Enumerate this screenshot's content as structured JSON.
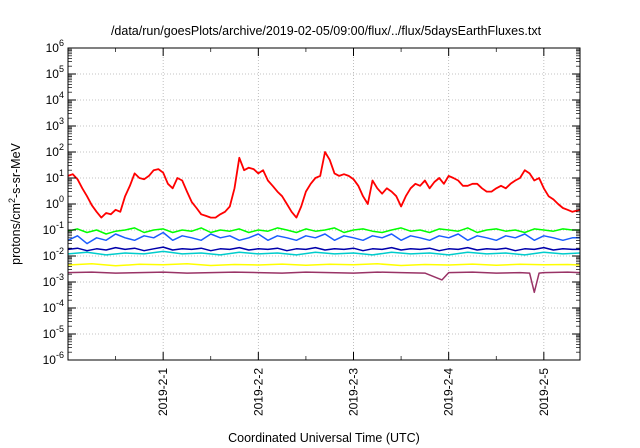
{
  "chart_data": {
    "type": "line",
    "title": "/data/run/goesPlots/archive/2019-02-05/09:00/flux/../flux/5daysEarthFluxes.txt",
    "xlabel": "Coordinated Universal Time (UTC)",
    "ylabel": "protons/cm2-s-sr-MeV",
    "ylabel_parts": {
      "before": "protons/cm",
      "sup": "2",
      "after": "-s-sr-MeV"
    },
    "yscale": "log",
    "ylim": [
      1e-06,
      1000000.0
    ],
    "xlim": [
      0,
      5.38
    ],
    "grid": true,
    "legend": "none",
    "y_ticks": [
      {
        "base": "10",
        "exp": "-6",
        "value": 1e-06
      },
      {
        "base": "10",
        "exp": "-5",
        "value": 1e-05
      },
      {
        "base": "10",
        "exp": "-4",
        "value": 0.0001
      },
      {
        "base": "10",
        "exp": "-3",
        "value": 0.001
      },
      {
        "base": "10",
        "exp": "-2",
        "value": 0.01
      },
      {
        "base": "10",
        "exp": "-1",
        "value": 0.1
      },
      {
        "base": "10",
        "exp": "0",
        "value": 1
      },
      {
        "base": "10",
        "exp": "1",
        "value": 10
      },
      {
        "base": "10",
        "exp": "2",
        "value": 100
      },
      {
        "base": "10",
        "exp": "3",
        "value": 1000
      },
      {
        "base": "10",
        "exp": "4",
        "value": 10000
      },
      {
        "base": "10",
        "exp": "5",
        "value": 100000
      },
      {
        "base": "10",
        "exp": "6",
        "value": 1000000
      }
    ],
    "x_ticks": [
      {
        "label": "2019-2-1",
        "value": 1
      },
      {
        "label": "2019-2-2",
        "value": 2
      },
      {
        "label": "2019-2-3",
        "value": 3
      },
      {
        "label": "2019-2-4",
        "value": 4
      },
      {
        "label": "2019-2-5",
        "value": 5
      }
    ],
    "series": [
      {
        "color": "#ff0000",
        "x": [
          0,
          0.05,
          0.1,
          0.15,
          0.2,
          0.25,
          0.3,
          0.35,
          0.4,
          0.45,
          0.5,
          0.55,
          0.6,
          0.65,
          0.7,
          0.75,
          0.8,
          0.85,
          0.9,
          0.95,
          1.0,
          1.05,
          1.1,
          1.15,
          1.2,
          1.25,
          1.3,
          1.35,
          1.4,
          1.45,
          1.5,
          1.55,
          1.6,
          1.65,
          1.7,
          1.75,
          1.8,
          1.85,
          1.9,
          1.95,
          2.0,
          2.05,
          2.1,
          2.15,
          2.2,
          2.25,
          2.3,
          2.35,
          2.4,
          2.45,
          2.5,
          2.55,
          2.6,
          2.65,
          2.7,
          2.75,
          2.8,
          2.85,
          2.9,
          2.95,
          3.0,
          3.05,
          3.1,
          3.15,
          3.2,
          3.25,
          3.3,
          3.35,
          3.4,
          3.45,
          3.5,
          3.55,
          3.6,
          3.65,
          3.7,
          3.75,
          3.8,
          3.85,
          3.9,
          3.95,
          4.0,
          4.05,
          4.1,
          4.15,
          4.2,
          4.25,
          4.3,
          4.35,
          4.4,
          4.45,
          4.5,
          4.55,
          4.6,
          4.65,
          4.7,
          4.75,
          4.8,
          4.85,
          4.9,
          4.95,
          5.0,
          5.05,
          5.1,
          5.15,
          5.2,
          5.25,
          5.3,
          5.38
        ],
        "y": [
          12,
          14,
          9,
          4,
          2,
          0.9,
          0.5,
          0.3,
          0.45,
          0.4,
          0.6,
          0.5,
          2,
          5,
          15,
          10,
          9,
          12,
          20,
          22,
          16,
          6,
          4,
          10,
          8,
          3,
          1.2,
          0.7,
          0.4,
          0.35,
          0.3,
          0.3,
          0.4,
          0.5,
          0.8,
          4,
          60,
          20,
          25,
          22,
          15,
          20,
          8,
          5,
          3,
          2,
          1,
          0.5,
          0.3,
          0.8,
          3,
          6,
          10,
          12,
          100,
          50,
          15,
          12,
          14,
          12,
          9,
          5,
          2,
          1,
          8,
          4,
          2.5,
          4,
          3,
          2,
          0.8,
          2,
          4,
          6,
          5,
          8,
          4,
          7,
          10,
          6,
          12,
          10,
          8,
          5,
          5,
          6,
          6,
          4,
          3,
          3,
          4,
          5,
          4,
          6,
          8,
          10,
          20,
          15,
          8,
          10,
          4,
          2,
          1.5,
          1,
          0.7,
          0.6,
          0.5,
          0.6
        ]
      },
      {
        "color": "#00ff00",
        "x": [
          0,
          0.1,
          0.2,
          0.3,
          0.4,
          0.5,
          0.6,
          0.7,
          0.8,
          0.9,
          1.0,
          1.1,
          1.2,
          1.3,
          1.4,
          1.5,
          1.6,
          1.7,
          1.8,
          1.9,
          2.0,
          2.1,
          2.2,
          2.3,
          2.4,
          2.5,
          2.6,
          2.7,
          2.8,
          2.9,
          3.0,
          3.1,
          3.2,
          3.3,
          3.4,
          3.5,
          3.6,
          3.7,
          3.8,
          3.9,
          4.0,
          4.1,
          4.2,
          4.3,
          4.4,
          4.5,
          4.6,
          4.7,
          4.8,
          4.9,
          5.0,
          5.1,
          5.2,
          5.3,
          5.38
        ],
        "y": [
          0.09,
          0.11,
          0.08,
          0.1,
          0.07,
          0.09,
          0.1,
          0.12,
          0.08,
          0.1,
          0.11,
          0.08,
          0.1,
          0.09,
          0.12,
          0.08,
          0.1,
          0.09,
          0.11,
          0.08,
          0.1,
          0.09,
          0.12,
          0.1,
          0.08,
          0.11,
          0.09,
          0.1,
          0.12,
          0.08,
          0.1,
          0.11,
          0.09,
          0.08,
          0.1,
          0.12,
          0.09,
          0.1,
          0.08,
          0.11,
          0.1,
          0.09,
          0.12,
          0.08,
          0.1,
          0.11,
          0.09,
          0.1,
          0.08,
          0.11,
          0.1,
          0.09,
          0.11,
          0.1,
          0.1
        ]
      },
      {
        "color": "#1a5cff",
        "x": [
          0,
          0.1,
          0.2,
          0.3,
          0.4,
          0.5,
          0.6,
          0.7,
          0.8,
          0.9,
          1.0,
          1.1,
          1.2,
          1.3,
          1.4,
          1.5,
          1.6,
          1.7,
          1.8,
          1.9,
          2.0,
          2.1,
          2.2,
          2.3,
          2.4,
          2.5,
          2.6,
          2.7,
          2.8,
          2.9,
          3.0,
          3.1,
          3.2,
          3.3,
          3.4,
          3.5,
          3.6,
          3.7,
          3.8,
          3.9,
          4.0,
          4.1,
          4.2,
          4.3,
          4.4,
          4.5,
          4.6,
          4.7,
          4.8,
          4.9,
          5.0,
          5.1,
          5.2,
          5.3,
          5.38
        ],
        "y": [
          0.04,
          0.06,
          0.03,
          0.05,
          0.04,
          0.07,
          0.05,
          0.04,
          0.06,
          0.05,
          0.08,
          0.04,
          0.06,
          0.05,
          0.04,
          0.07,
          0.05,
          0.06,
          0.04,
          0.05,
          0.07,
          0.04,
          0.06,
          0.05,
          0.04,
          0.06,
          0.05,
          0.07,
          0.04,
          0.06,
          0.05,
          0.04,
          0.06,
          0.05,
          0.07,
          0.04,
          0.06,
          0.05,
          0.04,
          0.06,
          0.05,
          0.07,
          0.04,
          0.06,
          0.05,
          0.04,
          0.06,
          0.05,
          0.07,
          0.04,
          0.06,
          0.05,
          0.04,
          0.05,
          0.05
        ]
      },
      {
        "color": "#00cccc",
        "x": [
          0,
          0.2,
          0.4,
          0.6,
          0.8,
          1.0,
          1.2,
          1.4,
          1.6,
          1.8,
          2.0,
          2.2,
          2.4,
          2.6,
          2.8,
          3.0,
          3.2,
          3.4,
          3.6,
          3.8,
          4.0,
          4.2,
          4.4,
          4.6,
          4.8,
          5.0,
          5.2,
          5.38
        ],
        "y": [
          0.012,
          0.014,
          0.011,
          0.013,
          0.012,
          0.015,
          0.012,
          0.013,
          0.011,
          0.014,
          0.012,
          0.013,
          0.011,
          0.014,
          0.012,
          0.013,
          0.011,
          0.014,
          0.012,
          0.013,
          0.011,
          0.014,
          0.012,
          0.013,
          0.011,
          0.014,
          0.012,
          0.013
        ]
      },
      {
        "color": "#0000aa",
        "x": [
          0,
          0.1,
          0.2,
          0.3,
          0.4,
          0.5,
          0.6,
          0.7,
          0.8,
          0.9,
          1.0,
          1.1,
          1.2,
          1.3,
          1.4,
          1.5,
          1.6,
          1.7,
          1.8,
          1.9,
          2.0,
          2.1,
          2.2,
          2.3,
          2.4,
          2.5,
          2.6,
          2.7,
          2.8,
          2.9,
          3.0,
          3.1,
          3.2,
          3.3,
          3.4,
          3.5,
          3.6,
          3.7,
          3.8,
          3.9,
          4.0,
          4.1,
          4.2,
          4.3,
          4.4,
          4.5,
          4.6,
          4.7,
          4.8,
          4.9,
          5.0,
          5.1,
          5.2,
          5.3,
          5.38
        ],
        "y": [
          0.018,
          0.02,
          0.016,
          0.019,
          0.017,
          0.021,
          0.018,
          0.02,
          0.016,
          0.019,
          0.022,
          0.017,
          0.019,
          0.018,
          0.02,
          0.016,
          0.019,
          0.018,
          0.021,
          0.017,
          0.019,
          0.018,
          0.02,
          0.016,
          0.019,
          0.018,
          0.021,
          0.017,
          0.019,
          0.018,
          0.02,
          0.016,
          0.019,
          0.018,
          0.021,
          0.017,
          0.019,
          0.018,
          0.02,
          0.016,
          0.019,
          0.018,
          0.021,
          0.017,
          0.019,
          0.018,
          0.02,
          0.016,
          0.019,
          0.018,
          0.021,
          0.017,
          0.019,
          0.018,
          0.018
        ]
      },
      {
        "color": "#ffff00",
        "x": [
          0,
          0.25,
          0.5,
          0.75,
          1.0,
          1.25,
          1.5,
          1.75,
          2.0,
          2.25,
          2.5,
          2.75,
          3.0,
          3.25,
          3.5,
          3.75,
          4.0,
          4.25,
          4.5,
          4.75,
          5.0,
          5.25,
          5.38
        ],
        "y": [
          0.0045,
          0.005,
          0.0042,
          0.0048,
          0.0046,
          0.005,
          0.0043,
          0.0047,
          0.0045,
          0.0049,
          0.0044,
          0.0048,
          0.0046,
          0.005,
          0.0043,
          0.0047,
          0.0045,
          0.0049,
          0.0044,
          0.0048,
          0.0046,
          0.0047,
          0.0045
        ]
      },
      {
        "color": "#993366",
        "x": [
          0,
          0.25,
          0.5,
          0.75,
          1.0,
          1.25,
          1.5,
          1.75,
          2.0,
          2.25,
          2.5,
          2.75,
          3.0,
          3.25,
          3.5,
          3.75,
          3.93,
          4.0,
          4.25,
          4.5,
          4.75,
          4.85,
          4.9,
          4.95,
          5.0,
          5.25,
          5.38
        ],
        "y": [
          0.0023,
          0.0024,
          0.0022,
          0.0023,
          0.0024,
          0.0022,
          0.0023,
          0.0024,
          0.0023,
          0.0022,
          0.0024,
          0.0023,
          0.0022,
          0.0024,
          0.0023,
          0.0022,
          0.0012,
          0.0023,
          0.0024,
          0.0022,
          0.0023,
          0.0022,
          0.0004,
          0.0022,
          0.0023,
          0.0024,
          0.0023
        ]
      }
    ]
  }
}
